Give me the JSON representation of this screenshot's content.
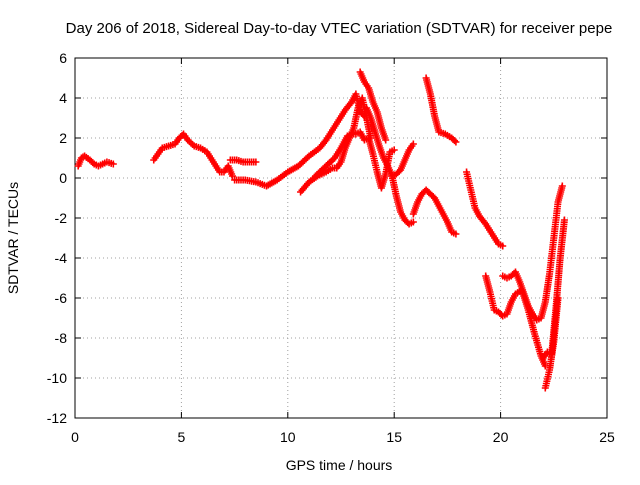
{
  "chart_data": {
    "type": "scatter",
    "title": "Day 206 of 2018, Sidereal Day-to-day VTEC variation (SDTVAR) for receiver pepe",
    "xlabel": "GPS time / hours",
    "ylabel": "SDTVAR / TECUs",
    "xlim": [
      0,
      25
    ],
    "ylim": [
      -12,
      6
    ],
    "x_ticks": [
      "0",
      "5",
      "10",
      "15",
      "20",
      "25"
    ],
    "y_ticks": [
      "-12",
      "-10",
      "-8",
      "-6",
      "-4",
      "-2",
      "0",
      "2",
      "4",
      "6"
    ],
    "grid": true,
    "marker": "plus",
    "marker_color": "#ff0000",
    "segments": [
      {
        "x": [
          0.15,
          0.3,
          0.45,
          0.7,
          0.9,
          1.1,
          1.3,
          1.5,
          1.8
        ],
        "y": [
          0.6,
          1.0,
          1.1,
          0.9,
          0.7,
          0.6,
          0.7,
          0.8,
          0.7
        ]
      },
      {
        "x": [
          3.7,
          3.9,
          4.1,
          4.4,
          4.7,
          4.9,
          5.1,
          5.3,
          5.6,
          5.9,
          6.2,
          6.5,
          6.8,
          7.0,
          7.2,
          7.4
        ],
        "y": [
          0.9,
          1.2,
          1.5,
          1.6,
          1.7,
          2.0,
          2.2,
          1.9,
          1.6,
          1.5,
          1.3,
          0.8,
          0.3,
          0.3,
          0.6,
          0.1
        ]
      },
      {
        "x": [
          7.3,
          7.6,
          7.9,
          8.2,
          8.5
        ],
        "y": [
          0.9,
          0.9,
          0.8,
          0.8,
          0.8
        ]
      },
      {
        "x": [
          7.5,
          8.0,
          8.5,
          9.0,
          9.5,
          10.0,
          10.5,
          11.0,
          11.5,
          11.8,
          12.1,
          12.4,
          12.7,
          13.0,
          13.2,
          13.4,
          13.6
        ],
        "y": [
          -0.1,
          -0.1,
          -0.2,
          -0.4,
          -0.1,
          0.3,
          0.6,
          1.1,
          1.5,
          1.9,
          2.4,
          2.9,
          3.4,
          3.8,
          4.2,
          3.3,
          3.1
        ]
      },
      {
        "x": [
          10.6,
          11.0,
          11.4,
          11.8,
          12.1,
          12.3,
          12.5,
          12.7,
          12.9,
          13.1,
          13.3,
          13.5,
          13.7,
          13.9
        ],
        "y": [
          -0.7,
          -0.2,
          0.1,
          0.3,
          0.5,
          0.5,
          0.8,
          1.5,
          2.0,
          2.5,
          3.5,
          4.0,
          3.0,
          2.0
        ]
      },
      {
        "x": [
          11.3,
          11.8,
          12.2,
          12.5,
          12.8,
          13.0,
          13.2,
          13.4,
          13.6,
          13.8,
          14.0,
          14.2,
          14.4,
          14.6,
          14.8,
          15.0
        ],
        "y": [
          0.1,
          0.6,
          1.0,
          1.5,
          2.1,
          2.2,
          2.2,
          2.3,
          1.9,
          2.0,
          1.2,
          0.3,
          -0.5,
          0.2,
          1.3,
          1.4
        ]
      },
      {
        "x": [
          13.4,
          13.6,
          13.8,
          14.0,
          14.2,
          14.4,
          14.6
        ],
        "y": [
          5.3,
          4.8,
          4.5,
          3.8,
          3.3,
          2.5,
          1.9
        ]
      },
      {
        "x": [
          13.7,
          13.9,
          14.1,
          14.3,
          14.5,
          14.7,
          14.9,
          15.1,
          15.3,
          15.5,
          15.7,
          15.9
        ],
        "y": [
          3.5,
          3.0,
          2.3,
          1.6,
          1.0,
          0.6,
          0.1,
          -0.9,
          -1.7,
          -2.1,
          -2.3,
          -2.2
        ]
      },
      {
        "x": [
          15.9,
          16.1,
          16.3,
          16.5,
          16.7,
          16.9,
          17.1,
          17.3,
          17.5,
          17.7,
          17.9
        ],
        "y": [
          -1.8,
          -1.2,
          -0.8,
          -0.6,
          -0.8,
          -1.0,
          -1.4,
          -1.8,
          -2.2,
          -2.7,
          -2.8
        ]
      },
      {
        "x": [
          14.9,
          15.1,
          15.3,
          15.5,
          15.7,
          15.9
        ],
        "y": [
          0.1,
          0.2,
          0.4,
          0.9,
          1.4,
          1.7
        ]
      },
      {
        "x": [
          16.5,
          16.7,
          16.9,
          17.1,
          17.4,
          17.7,
          17.9
        ],
        "y": [
          5.0,
          4.2,
          3.1,
          2.3,
          2.2,
          2.0,
          1.8
        ]
      },
      {
        "x": [
          18.4,
          18.6,
          18.8,
          19.0,
          19.3,
          19.6,
          19.9,
          20.1
        ],
        "y": [
          0.3,
          -0.6,
          -1.5,
          -1.9,
          -2.3,
          -2.8,
          -3.3,
          -3.4
        ]
      },
      {
        "x": [
          19.3,
          19.5,
          19.7,
          19.9,
          20.1,
          20.3,
          20.5,
          20.7,
          21.0,
          21.3,
          21.6,
          21.9,
          22.1
        ],
        "y": [
          -4.9,
          -5.7,
          -6.6,
          -6.7,
          -6.9,
          -6.8,
          -6.2,
          -5.8,
          -5.6,
          -6.6,
          -7.8,
          -8.9,
          -9.4
        ]
      },
      {
        "x": [
          20.1,
          20.3,
          20.5,
          20.7,
          20.9,
          21.1,
          21.3,
          21.5,
          21.7,
          21.9,
          22.1,
          22.3,
          22.5,
          22.7,
          22.9
        ],
        "y": [
          -4.9,
          -5.0,
          -4.9,
          -4.7,
          -5.2,
          -5.8,
          -6.4,
          -6.8,
          -7.1,
          -7.0,
          -6.2,
          -4.8,
          -3.0,
          -1.2,
          -0.4
        ]
      },
      {
        "x": [
          22.0,
          22.2,
          22.4,
          22.6,
          22.8,
          23.0
        ],
        "y": [
          -9.0,
          -8.7,
          -8.8,
          -6.5,
          -4.0,
          -2.1
        ]
      },
      {
        "x": [
          22.1,
          22.3,
          22.5,
          22.7
        ],
        "y": [
          -10.5,
          -9.6,
          -8.2,
          -6.0
        ]
      }
    ]
  }
}
